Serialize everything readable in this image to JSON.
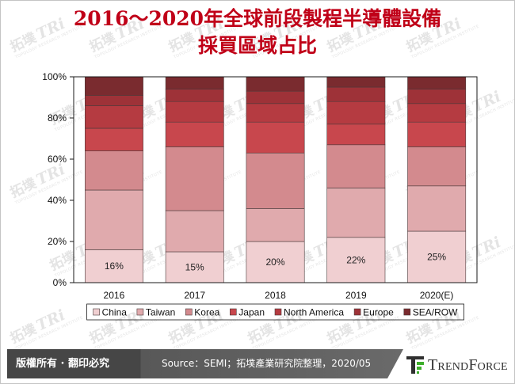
{
  "chart_data": {
    "type": "bar",
    "stacking": "percent",
    "title": [
      "2016～2020年全球前段製程半導體設備",
      "採買區域占比"
    ],
    "categories": [
      "2016",
      "2017",
      "2018",
      "2019",
      "2020(E)"
    ],
    "series": [
      {
        "name": "China",
        "values": [
          16,
          15,
          20,
          22,
          25
        ],
        "color": "#F0CFD1",
        "labels": [
          "16%",
          "15%",
          "20%",
          "22%",
          "25%"
        ]
      },
      {
        "name": "Taiwan",
        "values": [
          29,
          20,
          16,
          24,
          22
        ],
        "color": "#E0AAAD"
      },
      {
        "name": "Korea",
        "values": [
          19,
          31,
          27,
          21,
          19
        ],
        "color": "#D38A8E"
      },
      {
        "name": "Japan",
        "values": [
          11,
          12,
          15,
          10,
          12
        ],
        "color": "#C8474D"
      },
      {
        "name": "North America",
        "values": [
          11,
          10,
          9,
          11,
          9
        ],
        "color": "#B53B41"
      },
      {
        "name": "Europe",
        "values": [
          5,
          6,
          6,
          7,
          7
        ],
        "color": "#9E3238"
      },
      {
        "name": "SEA/ROW",
        "values": [
          9,
          6,
          7,
          5,
          6
        ],
        "color": "#7A2B2F"
      }
    ],
    "ylim": [
      0,
      100
    ],
    "yticks": [
      0,
      20,
      40,
      60,
      80,
      100
    ],
    "ytick_labels": [
      "0%",
      "20%",
      "40%",
      "60%",
      "80%",
      "100%"
    ],
    "grid": false,
    "legend_position": "bottom"
  },
  "footer": {
    "copyright": "版權所有 · 翻印必究",
    "source": "Source：SEMI；拓墣產業研究院整理，2020/05",
    "brand": "TrendForce"
  },
  "watermark": {
    "cn": "拓墣",
    "logo": "TRi",
    "sub": "TOPOLOGY RESEARCH INSTITUTE"
  },
  "colors": {
    "title": "#C00018",
    "footer_bg": "#585858",
    "logo_green": "#3DAE2B"
  }
}
